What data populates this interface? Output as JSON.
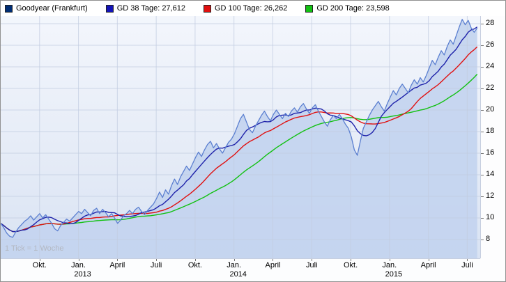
{
  "header": {
    "legend": [
      {
        "label": "Goodyear (Frankfurt)",
        "color": "#002d73"
      },
      {
        "label": "GD 38 Tage: 27,612",
        "color": "#1414b8"
      },
      {
        "label": "GD 100 Tage: 26,262",
        "color": "#e01010"
      },
      {
        "label": "GD 200 Tage: 23,598",
        "color": "#12c112"
      }
    ]
  },
  "watermark": "1 Tick = 1 Woche",
  "chart_data": {
    "type": "line",
    "title": "Goodyear (Frankfurt)",
    "xlabel": "",
    "ylabel": "",
    "x_unit": "weeks (1 Tick = 1 Woche)",
    "x_start": "Jul 2012",
    "x_end": "Aug 2015",
    "weeks_total": 161,
    "months_total": 37,
    "legend_position": "top",
    "grid": true,
    "ylim": [
      6.3,
      28.9
    ],
    "y_ticks": [
      8,
      10,
      12,
      14,
      16,
      18,
      20,
      22,
      24,
      26,
      28
    ],
    "x_axis_labels": [
      {
        "text": "Okt.",
        "month": 3
      },
      {
        "text": "Jan.",
        "month": 6,
        "year": "2013"
      },
      {
        "text": "April",
        "month": 9
      },
      {
        "text": "Juli",
        "month": 12
      },
      {
        "text": "Okt.",
        "month": 15
      },
      {
        "text": "Jan.",
        "month": 18,
        "year": "2014"
      },
      {
        "text": "April",
        "month": 21
      },
      {
        "text": "Juli",
        "month": 24
      },
      {
        "text": "Okt.",
        "month": 27
      },
      {
        "text": "Jan.",
        "month": 30,
        "year": "2015"
      },
      {
        "text": "April",
        "month": 33
      },
      {
        "text": "Juli",
        "month": 36
      }
    ],
    "series": [
      {
        "name": "Goodyear (Frankfurt)",
        "kind": "price-area",
        "color": "#5b7fd0",
        "fill": "#c3d4ef",
        "values": [
          9.5,
          9.1,
          8.6,
          8.3,
          8.2,
          8.7,
          9.1,
          9.4,
          9.7,
          9.9,
          10.2,
          9.8,
          10.1,
          10.4,
          10.0,
          10.3,
          9.9,
          9.5,
          9.0,
          8.8,
          9.3,
          9.6,
          9.9,
          9.7,
          10.0,
          10.3,
          10.6,
          10.4,
          10.8,
          10.5,
          10.2,
          10.7,
          10.9,
          10.4,
          10.8,
          10.5,
          10.1,
          10.4,
          10.0,
          9.5,
          9.8,
          10.2,
          10.4,
          10.7,
          10.4,
          10.8,
          11.0,
          10.6,
          10.3,
          10.7,
          11.0,
          11.3,
          11.8,
          12.4,
          11.9,
          12.6,
          12.2,
          13.0,
          13.6,
          13.1,
          13.8,
          14.3,
          14.8,
          14.4,
          15.0,
          15.6,
          16.1,
          15.7,
          16.3,
          16.8,
          17.1,
          16.5,
          16.9,
          16.4,
          16.0,
          16.5,
          17.0,
          17.3,
          17.8,
          18.5,
          19.2,
          19.6,
          18.9,
          18.2,
          17.9,
          18.5,
          19.0,
          19.5,
          19.9,
          19.4,
          19.0,
          19.6,
          20.0,
          19.6,
          19.2,
          19.7,
          19.4,
          19.9,
          20.2,
          19.8,
          20.3,
          20.6,
          20.1,
          19.7,
          20.2,
          20.5,
          19.9,
          19.4,
          18.9,
          18.5,
          19.1,
          19.5,
          19.2,
          19.6,
          19.2,
          18.7,
          18.3,
          17.5,
          16.3,
          15.8,
          17.1,
          18.3,
          18.9,
          19.5,
          20.0,
          20.4,
          20.8,
          20.3,
          19.9,
          20.6,
          21.2,
          21.8,
          21.4,
          22.0,
          22.4,
          22.0,
          21.6,
          22.3,
          22.8,
          22.4,
          23.0,
          22.6,
          23.2,
          23.9,
          24.6,
          24.2,
          24.9,
          25.5,
          25.1,
          25.9,
          26.5,
          26.1,
          26.9,
          27.7,
          28.4,
          27.9,
          28.3,
          27.6,
          27.2,
          27.6
        ]
      },
      {
        "name": "GD 38 Tage",
        "legend_value": "27,612",
        "kind": "moving-average",
        "window_weeks": 8,
        "color": "#1e22aa"
      },
      {
        "name": "GD 100 Tage",
        "legend_value": "26,262",
        "kind": "moving-average",
        "window_weeks": 20,
        "color": "#e01010"
      },
      {
        "name": "GD 200 Tage",
        "legend_value": "23,598",
        "kind": "moving-average",
        "window_weeks": 40,
        "color": "#12c112"
      }
    ]
  }
}
